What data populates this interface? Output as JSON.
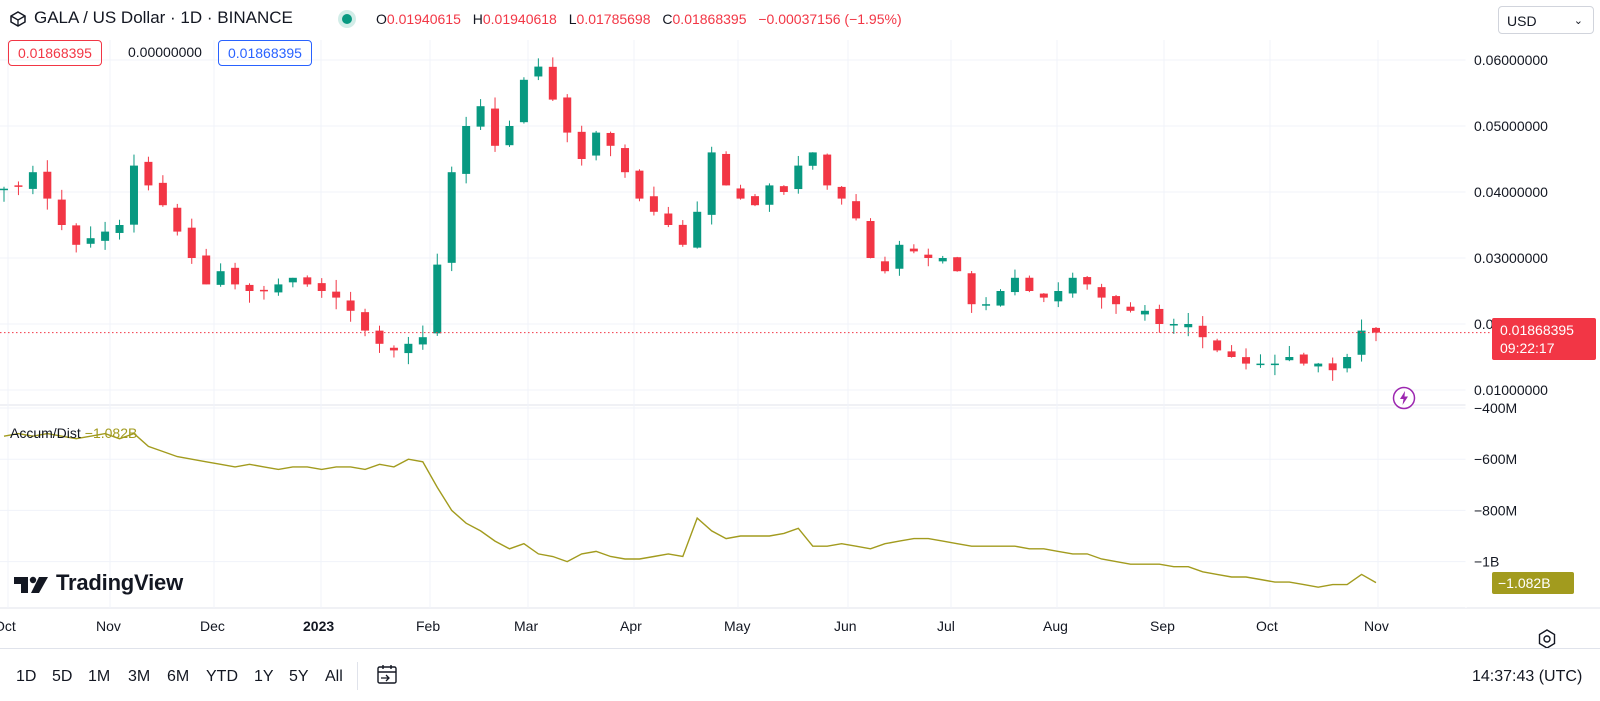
{
  "header": {
    "title": "GALA / US Dollar · 1D · BINANCE",
    "ohlc": [
      {
        "key": "O",
        "value": "0.01940615"
      },
      {
        "key": "H",
        "value": "0.01940618"
      },
      {
        "key": "L",
        "value": "0.01785698"
      },
      {
        "key": "C",
        "value": "0.01868395"
      }
    ],
    "change": "−0.00037156 (−1.95%)",
    "bid_box": "0.01868395",
    "spread_box": "0.00000000",
    "ask_box": "0.01868395",
    "currency": "USD"
  },
  "colors": {
    "up": "#089981",
    "down": "#f23645",
    "accum": "#a29b1e",
    "grid": "#f0f3fa"
  },
  "price_tag": {
    "price": "0.01868395",
    "countdown": "09:22:17"
  },
  "indicator": {
    "name": "Accum/Dist",
    "value": "−1.082B",
    "tag": "−1.082B"
  },
  "brand": "TradingView",
  "time_ranges": [
    "1D",
    "5D",
    "1M",
    "3M",
    "6M",
    "YTD",
    "1Y",
    "5Y",
    "All"
  ],
  "clock": "14:37:43 (UTC)",
  "icons": {
    "symbol": "gala-logo-icon",
    "calendar": "calendar-range-icon",
    "settings": "settings-icon",
    "alert": "lightning-icon"
  },
  "chart_data": [
    {
      "type": "candlestick",
      "title": "GALA / US Dollar · 1D · BINANCE",
      "price_axis_ticks": [
        "0.06000000",
        "0.05000000",
        "0.04000000",
        "0.03000000",
        "0.02000000",
        "0.01000000"
      ],
      "time_axis_labels": [
        "Oct",
        "Nov",
        "Dec",
        "2023",
        "Feb",
        "Mar",
        "Apr",
        "May",
        "Jun",
        "Jul",
        "Aug",
        "Sep",
        "Oct",
        "Nov"
      ],
      "ylim": [
        0.006,
        0.064
      ],
      "close_series": {
        "x_range": [
          "2022-10-31",
          "2023-11-01"
        ],
        "values": [
          0.0405,
          0.041,
          0.043,
          0.039,
          0.035,
          0.032,
          0.033,
          0.034,
          0.035,
          0.044,
          0.041,
          0.038,
          0.034,
          0.03,
          0.026,
          0.028,
          0.026,
          0.025,
          0.025,
          0.026,
          0.027,
          0.026,
          0.025,
          0.024,
          0.022,
          0.019,
          0.017,
          0.016,
          0.017,
          0.018,
          0.029,
          0.043,
          0.05,
          0.053,
          0.047,
          0.05,
          0.057,
          0.059,
          0.054,
          0.049,
          0.045,
          0.049,
          0.047,
          0.043,
          0.039,
          0.037,
          0.035,
          0.032,
          0.037,
          0.046,
          0.041,
          0.039,
          0.038,
          0.041,
          0.04,
          0.044,
          0.046,
          0.041,
          0.039,
          0.036,
          0.03,
          0.028,
          0.032,
          0.031,
          0.03,
          0.03,
          0.028,
          0.023,
          0.023,
          0.025,
          0.027,
          0.025,
          0.024,
          0.025,
          0.027,
          0.026,
          0.024,
          0.023,
          0.022,
          0.022,
          0.02,
          0.02,
          0.02,
          0.018,
          0.016,
          0.015,
          0.014,
          0.014,
          0.014,
          0.015,
          0.014,
          0.014,
          0.013,
          0.015,
          0.019,
          0.0187
        ]
      }
    },
    {
      "type": "line",
      "name": "Accum/Dist",
      "value_axis_ticks": [
        "−400M",
        "−600M",
        "−800M",
        "−1B"
      ],
      "ylim": [
        -1.18,
        -0.39
      ],
      "x_range": [
        "2022-10-31",
        "2023-11-01"
      ],
      "values": [
        -0.51,
        -0.5,
        -0.51,
        -0.5,
        -0.51,
        -0.52,
        -0.51,
        -0.5,
        -0.52,
        -0.5,
        -0.55,
        -0.57,
        -0.59,
        -0.6,
        -0.61,
        -0.62,
        -0.63,
        -0.62,
        -0.63,
        -0.64,
        -0.63,
        -0.63,
        -0.64,
        -0.63,
        -0.63,
        -0.64,
        -0.62,
        -0.63,
        -0.6,
        -0.61,
        -0.71,
        -0.8,
        -0.85,
        -0.88,
        -0.92,
        -0.95,
        -0.93,
        -0.97,
        -0.98,
        -1.0,
        -0.97,
        -0.96,
        -0.98,
        -0.99,
        -0.99,
        -0.98,
        -0.97,
        -0.98,
        -0.83,
        -0.88,
        -0.91,
        -0.9,
        -0.9,
        -0.9,
        -0.89,
        -0.87,
        -0.94,
        -0.94,
        -0.93,
        -0.94,
        -0.95,
        -0.93,
        -0.92,
        -0.91,
        -0.91,
        -0.92,
        -0.93,
        -0.94,
        -0.94,
        -0.94,
        -0.94,
        -0.95,
        -0.95,
        -0.96,
        -0.97,
        -0.97,
        -0.99,
        -1.0,
        -1.01,
        -1.01,
        -1.01,
        -1.02,
        -1.02,
        -1.04,
        -1.05,
        -1.06,
        -1.06,
        -1.07,
        -1.08,
        -1.08,
        -1.09,
        -1.1,
        -1.09,
        -1.09,
        -1.05,
        -1.082
      ]
    }
  ]
}
